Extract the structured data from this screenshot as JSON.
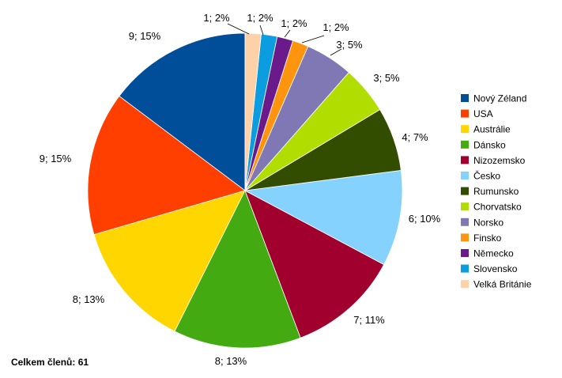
{
  "chart_data": {
    "type": "pie",
    "title": "",
    "total_label": "Celkem členů: 61",
    "legend_position": "right",
    "slices": [
      {
        "name": "Nový Zéland",
        "value": 9,
        "percent": 15,
        "label": "9; 15%",
        "color": "#004d99"
      },
      {
        "name": "USA",
        "value": 9,
        "percent": 15,
        "label": "9; 15%",
        "color": "#ff3f00"
      },
      {
        "name": "Austrálie",
        "value": 8,
        "percent": 13,
        "label": "8; 13%",
        "color": "#ffd600"
      },
      {
        "name": "Dánsko",
        "value": 8,
        "percent": 13,
        "label": "8; 13%",
        "color": "#44aa11"
      },
      {
        "name": "Nizozemsko",
        "value": 7,
        "percent": 11,
        "label": "7; 11%",
        "color": "#a1002f"
      },
      {
        "name": "Česko",
        "value": 6,
        "percent": 10,
        "label": "6; 10%",
        "color": "#85d2ff"
      },
      {
        "name": "Rumunsko",
        "value": 4,
        "percent": 7,
        "label": "4; 7%",
        "color": "#334d00"
      },
      {
        "name": "Chorvatsko",
        "value": 3,
        "percent": 5,
        "label": "3; 5%",
        "color": "#b1dd00"
      },
      {
        "name": "Norsko",
        "value": 3,
        "percent": 5,
        "label": "3; 5%",
        "color": "#7f78b5"
      },
      {
        "name": "Finsko",
        "value": 1,
        "percent": 2,
        "label": "1; 2%",
        "color": "#ff950e"
      },
      {
        "name": "Německo",
        "value": 1,
        "percent": 2,
        "label": "1; 2%",
        "color": "#6b1a8c"
      },
      {
        "name": "Slovensko",
        "value": 1,
        "percent": 2,
        "label": "1; 2%",
        "color": "#0b9de0"
      },
      {
        "name": "Velká Británie",
        "value": 1,
        "percent": 2,
        "label": "1; 2%",
        "color": "#ffd1a8"
      }
    ]
  }
}
